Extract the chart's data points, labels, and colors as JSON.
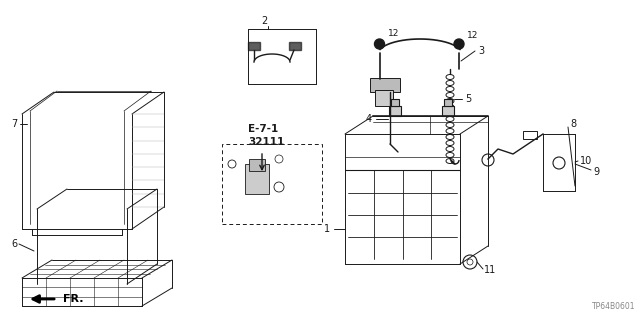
{
  "bg_color": "#ffffff",
  "part_code": "TP64B0601",
  "line_color": "#1a1a1a",
  "text_color": "#1a1a1a",
  "gray_fill": "#d8d8d8",
  "light_gray": "#eeeeee"
}
